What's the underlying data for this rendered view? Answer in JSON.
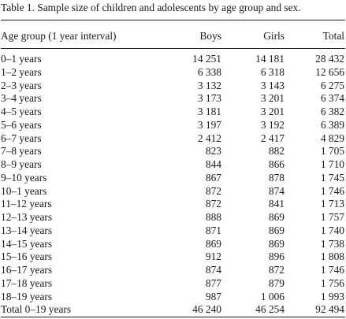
{
  "table": {
    "caption": "Table 1. Sample size of children and adolescents by age group and sex.",
    "headers": {
      "age": "Age group (1 year interval)",
      "boys": "Boys",
      "girls": "Girls",
      "total": "Total"
    },
    "rows": [
      {
        "age": "0–1 years",
        "boys": "14 251",
        "girls": "14 181",
        "total": "28 432"
      },
      {
        "age": "1–2 years",
        "boys": "6 338",
        "girls": "6 318",
        "total": "12 656"
      },
      {
        "age": "2–3 years",
        "boys": "3 132",
        "girls": "3 143",
        "total": "6 275"
      },
      {
        "age": "3–4 years",
        "boys": "3 173",
        "girls": "3 201",
        "total": "6 374"
      },
      {
        "age": "4–5 years",
        "boys": "3 181",
        "girls": "3 201",
        "total": "6 382"
      },
      {
        "age": "5–6 years",
        "boys": "3 197",
        "girls": "3 192",
        "total": "6 389"
      },
      {
        "age": "6–7 years",
        "boys": "2 412",
        "girls": "2 417",
        "total": "4 829"
      },
      {
        "age": "7–8 years",
        "boys": "823",
        "girls": "882",
        "total": "1 705"
      },
      {
        "age": "8–9 years",
        "boys": "844",
        "girls": "866",
        "total": "1 710"
      },
      {
        "age": "9–10 years",
        "boys": "867",
        "girls": "878",
        "total": "1 745"
      },
      {
        "age": "10–1 years",
        "boys": "872",
        "girls": "874",
        "total": "1 746"
      },
      {
        "age": "11–12 years",
        "boys": "872",
        "girls": "841",
        "total": "1 713"
      },
      {
        "age": "12–13 years",
        "boys": "888",
        "girls": "869",
        "total": "1 757"
      },
      {
        "age": "13–14 years",
        "boys": "871",
        "girls": "869",
        "total": "1 740"
      },
      {
        "age": "14–15 years",
        "boys": "869",
        "girls": "869",
        "total": "1 738"
      },
      {
        "age": "15–16 years",
        "boys": "912",
        "girls": "896",
        "total": "1 808"
      },
      {
        "age": "16–17 years",
        "boys": "874",
        "girls": "872",
        "total": "1 746"
      },
      {
        "age": "17–18 years",
        "boys": "877",
        "girls": "879",
        "total": "1 756"
      },
      {
        "age": "18–19 years",
        "boys": "987",
        "girls": "1 006",
        "total": "1 993"
      },
      {
        "age": "Total 0–19 years",
        "boys": "46 240",
        "girls": "46 254",
        "total": "92 494"
      }
    ]
  }
}
